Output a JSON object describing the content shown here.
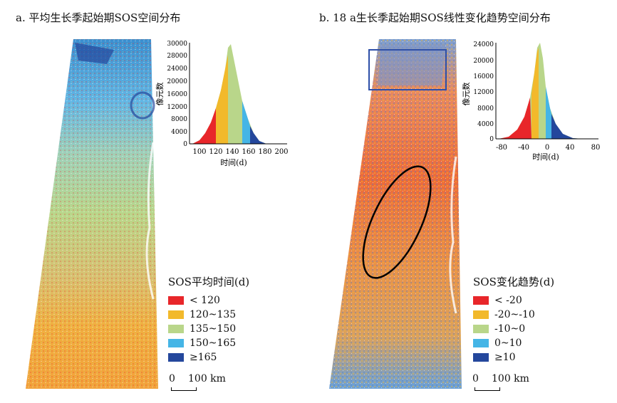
{
  "panel_a": {
    "title": "a. 平均生长季起始期SOS空间分布",
    "hist_ylabel": "像元数",
    "hist_xlabel": "时间(d)",
    "y_ticks": [
      "30000",
      "28000",
      "24000",
      "20000",
      "16000",
      "12000",
      "8000",
      "4000",
      "0"
    ],
    "x_ticks": [
      "100",
      "120",
      "140",
      "160",
      "180",
      "200"
    ],
    "legend_title": "SOS平均时间(d)",
    "legend": [
      {
        "label": "< 120",
        "color": "#e8262a"
      },
      {
        "label": "120~135",
        "color": "#f2b92b"
      },
      {
        "label": "135~150",
        "color": "#b9d68a"
      },
      {
        "label": "150~165",
        "color": "#45b5e6"
      },
      {
        "label": "≥165",
        "color": "#24479c"
      }
    ],
    "scale": {
      "start": "0",
      "end": "100 km"
    }
  },
  "panel_b": {
    "title": "b. 18 a生长季起始期SOS线性变化趋势空间分布",
    "hist_ylabel": "像元数",
    "hist_xlabel": "时间(d)",
    "y_ticks": [
      "24000",
      "20000",
      "16000",
      "12000",
      "8000",
      "4000",
      "0"
    ],
    "x_ticks": [
      "-80",
      "-40",
      "0",
      "40",
      "80"
    ],
    "legend_title": "SOS变化趋势(d)",
    "legend": [
      {
        "label": "< -20",
        "color": "#e8262a"
      },
      {
        "label": "-20~-10",
        "color": "#f2b92b"
      },
      {
        "label": "-10~0",
        "color": "#b9d68a"
      },
      {
        "label": "0~10",
        "color": "#45b5e6"
      },
      {
        "label": "≥10",
        "color": "#24479c"
      }
    ],
    "scale": {
      "start": "0",
      "end": "100 km"
    }
  }
}
